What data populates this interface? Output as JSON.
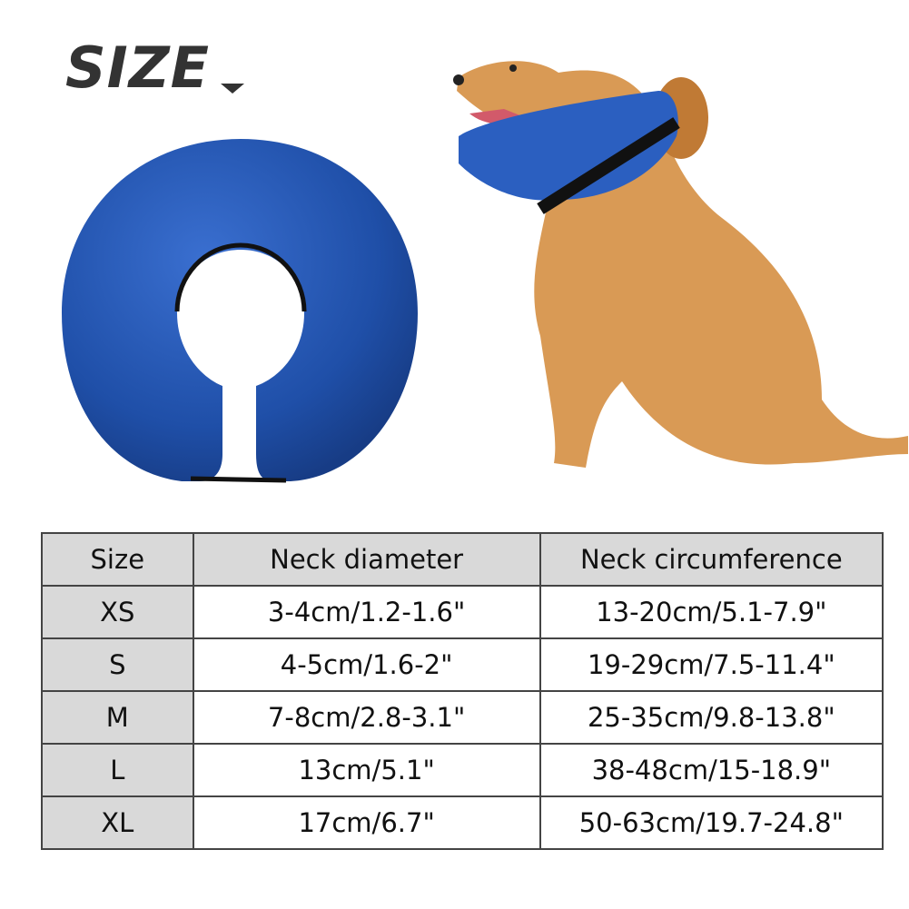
{
  "heading": {
    "title": "SIZE",
    "caret_icon": "caret-down-icon"
  },
  "images": {
    "collar": "inflatable-collar-image",
    "dog": "dog-wearing-collar-image",
    "collar_color": "#1f4fa8"
  },
  "table": {
    "headers": [
      "Size",
      "Neck diameter",
      "Neck circumference"
    ],
    "rows": [
      [
        "XS",
        "3-4cm/1.2-1.6\"",
        "13-20cm/5.1-7.9\""
      ],
      [
        "S",
        "4-5cm/1.6-2\"",
        "19-29cm/7.5-11.4\""
      ],
      [
        "M",
        "7-8cm/2.8-3.1\"",
        "25-35cm/9.8-13.8\""
      ],
      [
        "L",
        "13cm/5.1\"",
        "38-48cm/15-18.9\""
      ],
      [
        "XL",
        "17cm/6.7\"",
        "50-63cm/19.7-24.8\""
      ]
    ]
  }
}
